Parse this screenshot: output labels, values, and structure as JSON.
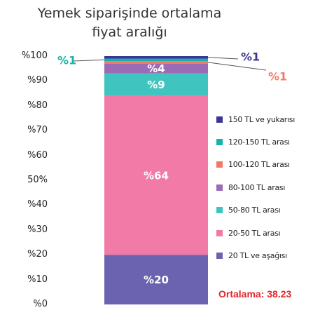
{
  "chart_data": {
    "type": "bar",
    "stacked": true,
    "title_lines": [
      "Yemek siparişinde ortalama",
      "fiyat aralığı"
    ],
    "categories": [
      ""
    ],
    "ylim": [
      0,
      100
    ],
    "yticks": [
      "%0",
      "%10",
      "%20",
      "%30",
      "%40",
      "50%",
      "%60",
      "%70",
      "%80",
      "%90",
      "%100"
    ],
    "series": [
      {
        "name": "20 TL ve aşağısı",
        "value": 20,
        "label": "%20",
        "color": "#6c63b0",
        "label_color": "#ffffff"
      },
      {
        "name": "20-50 TL arası",
        "value": 64,
        "label": "%64",
        "color": "#f27aa6",
        "label_color": "#ffffff"
      },
      {
        "name": "50-80 TL arası",
        "value": 9,
        "label": "%9",
        "color": "#3fc4c0",
        "label_color": "#ffffff"
      },
      {
        "name": "80-100 TL arası",
        "value": 4,
        "label": "%4",
        "color": "#9b6bb5",
        "label_color": "#ffffff"
      },
      {
        "name": "100-120 TL arası",
        "value": 1,
        "label": "%1",
        "color": "#f07a6a",
        "label_color": "#f07a6a"
      },
      {
        "name": "120-150 TL arası",
        "value": 1,
        "label": "%1",
        "color": "#16b3ad",
        "label_color": "#16b3ad"
      },
      {
        "name": "150 TL ve yukarısı",
        "value": 1,
        "label": "%1",
        "color": "#3d3596",
        "label_color": "#3d3596"
      }
    ],
    "legend_order": [
      "150 TL ve yukarısı",
      "120-150 TL arası",
      "100-120 TL arası",
      "80-100 TL arası",
      "50-80 TL arası",
      "20-50 TL arası",
      "20 TL ve aşağısı"
    ],
    "legend_position": "right",
    "grid": false,
    "annotation": "Ortalama: 38.23"
  }
}
